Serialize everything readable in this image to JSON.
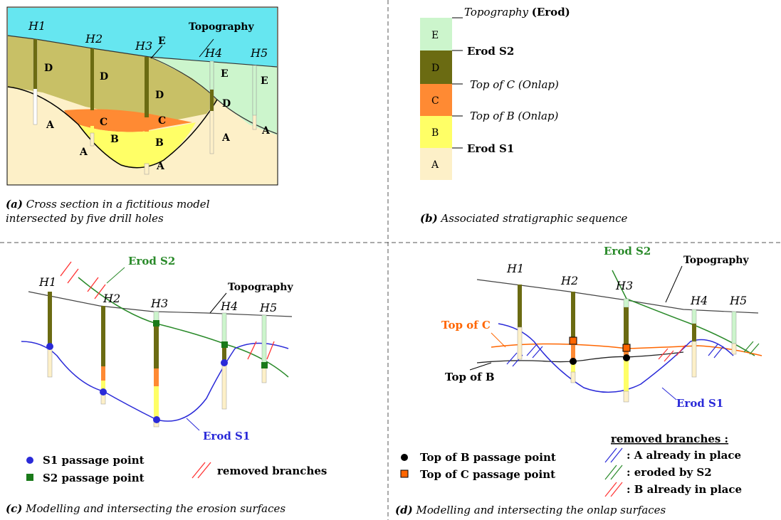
{
  "panel_a": {
    "holes": [
      "H1",
      "H2",
      "H3",
      "H4",
      "H5"
    ],
    "topography": "Topography",
    "units": {
      "A": "A",
      "B": "B",
      "C": "C",
      "D": "D",
      "E": "E"
    },
    "caption_tag": "(a)",
    "caption_line1": "Cross section in a fictitious model",
    "caption_line2": "intersected by five drill holes"
  },
  "panel_b": {
    "units": [
      "E",
      "D",
      "C",
      "B",
      "A"
    ],
    "topography_label": "Topography",
    "topography_suffix": "(Erod)",
    "erod_s2": "Erod S2",
    "top_c": "Top of C (Onlap)",
    "top_b": "Top of B (Onlap)",
    "erod_s1": "Erod S1",
    "caption_tag": "(b)",
    "caption": "Associated stratigraphic sequence"
  },
  "panel_c": {
    "holes": [
      "H1",
      "H2",
      "H3",
      "H4",
      "H5"
    ],
    "erod_s2": "Erod S2",
    "topography": "Topography",
    "erod_s1": "Erod S1",
    "legend_s1": "S1 passage point",
    "legend_s2": "S2 passage point",
    "legend_removed": "removed branches",
    "caption_tag": "(c)",
    "caption": "Modelling and intersecting the erosion surfaces"
  },
  "panel_d": {
    "holes": [
      "H1",
      "H2",
      "H3",
      "H4",
      "H5"
    ],
    "erod_s2": "Erod S2",
    "topography": "Topography",
    "top_c": "Top of C",
    "top_b": "Top of B",
    "erod_s1": "Erod S1",
    "removed_title": "removed branches :",
    "removed_a": ": A already in place",
    "removed_s2": ": eroded by S2",
    "removed_b": ": B already in place",
    "legend_top_b": "Top of B passage point",
    "legend_top_c": "Top of C passage point",
    "caption_tag": "(d)",
    "caption": "Modelling and intersecting the onlap surfaces"
  },
  "colors": {
    "sky": "#66e6f0",
    "A": "#fdf0c8",
    "B": "#ffff66",
    "C": "#ff8a33",
    "D": "#6b6b12",
    "D_fill": "#c8c066",
    "E": "#ccf5cc",
    "erod_s1": "#2a2ad8",
    "erod_s2": "#2a8a2a",
    "onlap_c": "#ff6600",
    "removed_red": "#ff3333"
  }
}
